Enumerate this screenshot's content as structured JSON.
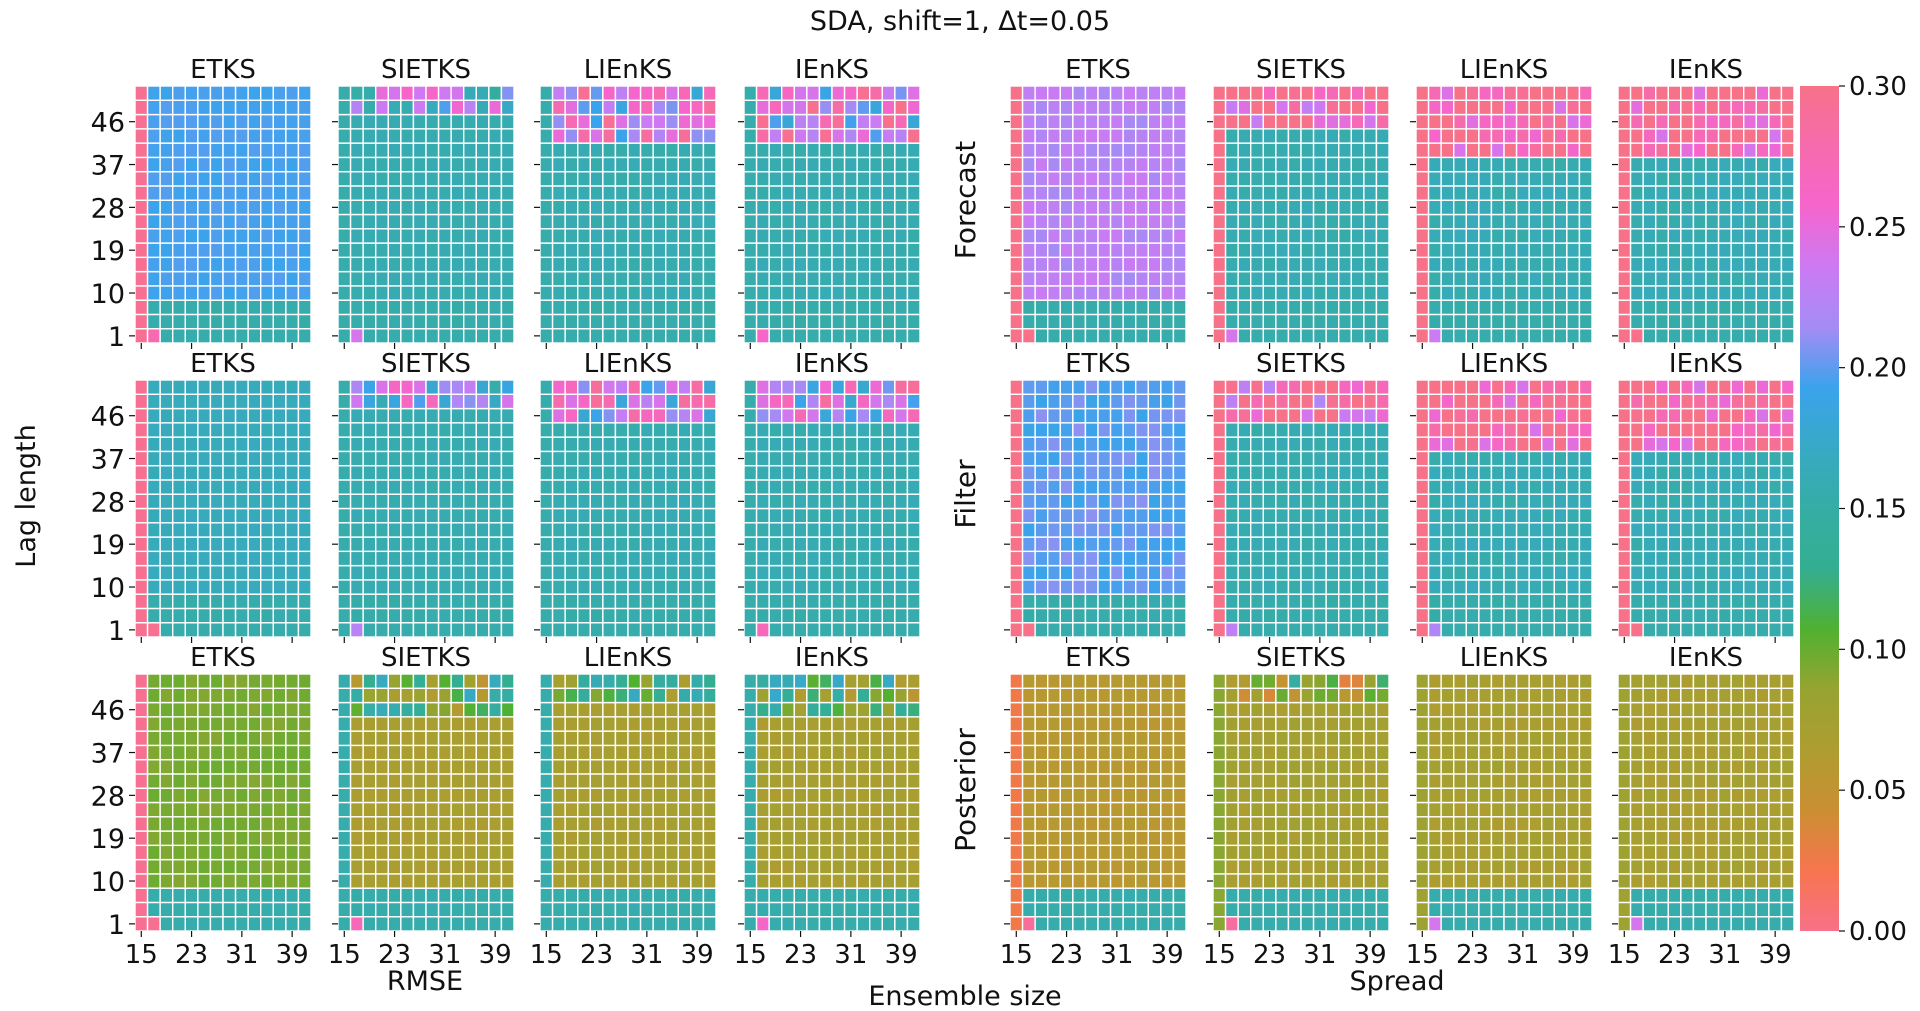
{
  "title": "SDA, shift=1, Δt=0.05",
  "ylabel": "Lag length",
  "xlabel": "Ensemble size",
  "group_labels": {
    "left": "RMSE",
    "right": "Spread"
  },
  "row_labels": [
    "Forecast",
    "Filter",
    "Posterior"
  ],
  "methods": [
    "ETKS",
    "SIETKS",
    "LIEnKS",
    "IEnKS"
  ],
  "colorbar": {
    "ticks": [
      "0.00",
      "0.05",
      "0.10",
      "0.15",
      "0.20",
      "0.25",
      "0.30"
    ],
    "range": [
      0.0,
      0.3
    ],
    "colors": [
      "#f77189",
      "#f7754f",
      "#cb8f32",
      "#ae9d31",
      "#97a431",
      "#50b131",
      "#34ae91",
      "#36ada4",
      "#38a9c5",
      "#3ba3ec",
      "#a48cf4",
      "#cc7af4",
      "#f565cc",
      "#f66bad",
      "#f77189"
    ]
  },
  "chart_data": {
    "type": "heatmap",
    "x_name": "Ensemble size",
    "y_name": "Lag length",
    "x_values": [
      15,
      17,
      19,
      21,
      23,
      25,
      27,
      29,
      31,
      33,
      35,
      37,
      39,
      41
    ],
    "y_values": [
      1,
      4,
      7,
      10,
      13,
      16,
      19,
      22,
      25,
      28,
      31,
      34,
      37,
      40,
      43,
      46,
      49,
      52
    ],
    "x_tick_labels": [
      "15",
      "23",
      "31",
      "39"
    ],
    "y_tick_labels": [
      "1",
      "10",
      "19",
      "28",
      "37",
      "46"
    ],
    "vmin": 0.0,
    "vmax": 0.3,
    "panels": [
      {
        "metric": "RMSE",
        "stat": "Forecast",
        "method": "ETKS",
        "edge_col": 0.295,
        "edge_bottom": 0.275,
        "base": 0.195,
        "top_level": 0.195,
        "top_rows": 0,
        "noise": 0.003
      },
      {
        "metric": "RMSE",
        "stat": "Forecast",
        "method": "SIETKS",
        "edge_col": 0.155,
        "edge_bottom": 0.24,
        "base": 0.158,
        "top_level": 0.2,
        "top_rows": 2,
        "noise": 0.002
      },
      {
        "metric": "RMSE",
        "stat": "Forecast",
        "method": "LIEnKS",
        "edge_col": 0.155,
        "edge_bottom": 0.155,
        "base": 0.158,
        "top_level": 0.235,
        "top_rows": 4,
        "noise": 0.004
      },
      {
        "metric": "RMSE",
        "stat": "Forecast",
        "method": "IEnKS",
        "edge_col": 0.155,
        "edge_bottom": 0.26,
        "base": 0.158,
        "top_level": 0.24,
        "top_rows": 4,
        "noise": 0.004
      },
      {
        "metric": "Spread",
        "stat": "Forecast",
        "method": "ETKS",
        "edge_col": 0.3,
        "edge_bottom": 0.3,
        "base": 0.225,
        "top_level": 0.225,
        "top_rows": 0,
        "noise": 0.01
      },
      {
        "metric": "Spread",
        "stat": "Forecast",
        "method": "SIETKS",
        "edge_col": 0.3,
        "edge_bottom": 0.24,
        "base": 0.158,
        "top_level": 0.29,
        "top_rows": 3,
        "noise": 0.004
      },
      {
        "metric": "Spread",
        "stat": "Forecast",
        "method": "LIEnKS",
        "edge_col": 0.3,
        "edge_bottom": 0.235,
        "base": 0.16,
        "top_level": 0.3,
        "top_rows": 5,
        "noise": 0.006
      },
      {
        "metric": "Spread",
        "stat": "Forecast",
        "method": "IEnKS",
        "edge_col": 0.3,
        "edge_bottom": 0.3,
        "base": 0.16,
        "top_level": 0.3,
        "top_rows": 5,
        "noise": 0.006
      },
      {
        "metric": "RMSE",
        "stat": "Filter",
        "method": "ETKS",
        "edge_col": 0.295,
        "edge_bottom": 0.295,
        "base": 0.165,
        "top_level": 0.165,
        "top_rows": 0,
        "noise": 0.002
      },
      {
        "metric": "RMSE",
        "stat": "Filter",
        "method": "SIETKS",
        "edge_col": 0.155,
        "edge_bottom": 0.225,
        "base": 0.158,
        "top_level": 0.21,
        "top_rows": 2,
        "noise": 0.002
      },
      {
        "metric": "RMSE",
        "stat": "Filter",
        "method": "LIEnKS",
        "edge_col": 0.155,
        "edge_bottom": 0.155,
        "base": 0.158,
        "top_level": 0.23,
        "top_rows": 3,
        "noise": 0.003
      },
      {
        "metric": "RMSE",
        "stat": "Filter",
        "method": "IEnKS",
        "edge_col": 0.155,
        "edge_bottom": 0.27,
        "base": 0.158,
        "top_level": 0.235,
        "top_rows": 3,
        "noise": 0.004
      },
      {
        "metric": "Spread",
        "stat": "Filter",
        "method": "ETKS",
        "edge_col": 0.3,
        "edge_bottom": 0.3,
        "base": 0.2,
        "top_level": 0.22,
        "top_rows": 0,
        "noise": 0.01
      },
      {
        "metric": "Spread",
        "stat": "Filter",
        "method": "SIETKS",
        "edge_col": 0.3,
        "edge_bottom": 0.23,
        "base": 0.158,
        "top_level": 0.28,
        "top_rows": 3,
        "noise": 0.004
      },
      {
        "metric": "Spread",
        "stat": "Filter",
        "method": "LIEnKS",
        "edge_col": 0.3,
        "edge_bottom": 0.22,
        "base": 0.16,
        "top_level": 0.3,
        "top_rows": 5,
        "noise": 0.006
      },
      {
        "metric": "Spread",
        "stat": "Filter",
        "method": "IEnKS",
        "edge_col": 0.3,
        "edge_bottom": 0.3,
        "base": 0.16,
        "top_level": 0.3,
        "top_rows": 5,
        "noise": 0.006
      },
      {
        "metric": "RMSE",
        "stat": "Posterior",
        "method": "ETKS",
        "edge_col": 0.295,
        "edge_bottom": 0.295,
        "base": 0.095,
        "top_level": 0.085,
        "top_rows": 0,
        "noise": 0.004
      },
      {
        "metric": "RMSE",
        "stat": "Posterior",
        "method": "SIETKS",
        "edge_col": 0.155,
        "edge_bottom": 0.27,
        "base": 0.068,
        "top_level": 0.11,
        "top_rows": 3,
        "noise": 0.003
      },
      {
        "metric": "RMSE",
        "stat": "Posterior",
        "method": "LIEnKS",
        "edge_col": 0.155,
        "edge_bottom": 0.155,
        "base": 0.07,
        "top_level": 0.112,
        "top_rows": 2,
        "noise": 0.005
      },
      {
        "metric": "RMSE",
        "stat": "Posterior",
        "method": "IEnKS",
        "edge_col": 0.155,
        "edge_bottom": 0.26,
        "base": 0.07,
        "top_level": 0.115,
        "top_rows": 3,
        "noise": 0.005
      },
      {
        "metric": "Spread",
        "stat": "Posterior",
        "method": "ETKS",
        "edge_col": 0.025,
        "edge_bottom": 0.29,
        "base": 0.058,
        "top_level": 0.058,
        "top_rows": 0,
        "noise": 0.003
      },
      {
        "metric": "Spread",
        "stat": "Posterior",
        "method": "SIETKS",
        "edge_col": 0.09,
        "edge_bottom": 0.285,
        "base": 0.072,
        "top_level": 0.09,
        "top_rows": 2,
        "noise": 0.006
      },
      {
        "metric": "Spread",
        "stat": "Posterior",
        "method": "LIEnKS",
        "edge_col": 0.08,
        "edge_bottom": 0.24,
        "base": 0.07,
        "top_level": 0.07,
        "top_rows": 0,
        "noise": 0.006
      },
      {
        "metric": "Spread",
        "stat": "Posterior",
        "method": "IEnKS",
        "edge_col": 0.08,
        "edge_bottom": 0.24,
        "base": 0.07,
        "top_level": 0.07,
        "top_rows": 0,
        "noise": 0.006
      }
    ],
    "bottom_rows_value": 0.155
  }
}
